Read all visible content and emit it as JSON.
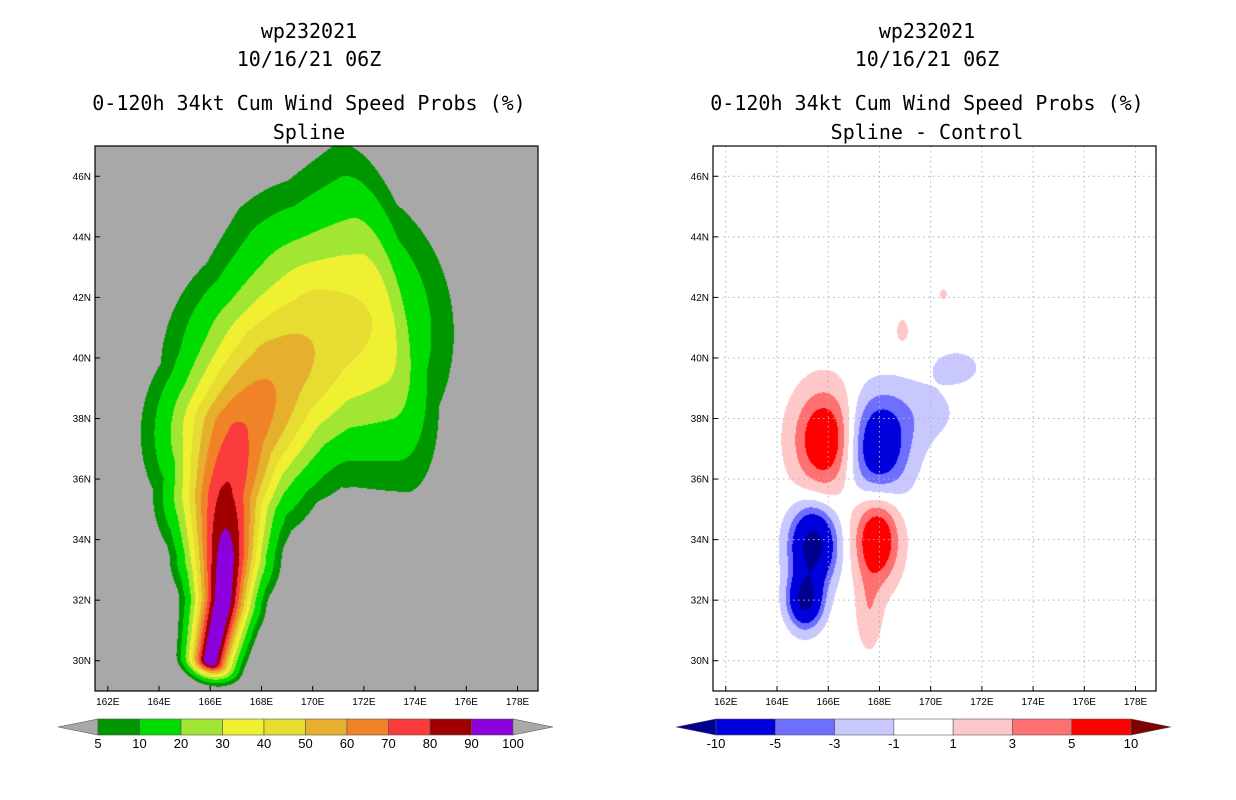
{
  "chart_data": [
    {
      "type": "heatmap",
      "title_lines": [
        "wp232021",
        "10/16/21 06Z",
        "0-120h 34kt Cum Wind Speed Probs (%)",
        "Spline"
      ],
      "background": "#a8a8a8",
      "x_ticks": [
        "162E",
        "164E",
        "166E",
        "168E",
        "170E",
        "172E",
        "174E",
        "176E",
        "178E"
      ],
      "y_ticks": [
        "30N",
        "32N",
        "34N",
        "36N",
        "38N",
        "40N",
        "42N",
        "44N",
        "46N"
      ],
      "xlim": [
        161.5,
        178.8
      ],
      "ylim": [
        29,
        47
      ],
      "colorbar": {
        "labels": [
          "5",
          "10",
          "20",
          "30",
          "40",
          "50",
          "60",
          "70",
          "80",
          "90",
          "100"
        ],
        "colors": [
          "#009600",
          "#00dc00",
          "#a0e632",
          "#f0f032",
          "#e6dc32",
          "#e6af2d",
          "#f08228",
          "#fa3c3c",
          "#a00000",
          "#8c00dc"
        ],
        "extend_colors": [
          "#a8a8a8",
          "#a8a8a8"
        ]
      },
      "levels": [
        5,
        10,
        20,
        30,
        40,
        50,
        60,
        70,
        80,
        90
      ],
      "level_colors": [
        "#009600",
        "#00dc00",
        "#a0e632",
        "#f0f032",
        "#e6dc32",
        "#e6af2d",
        "#f08228",
        "#fa3c3c",
        "#a00000",
        "#8c00dc"
      ],
      "track": [
        [
          166.0,
          30.0
        ],
        [
          166.5,
          32.0
        ],
        [
          166.6,
          33.5
        ],
        [
          166.6,
          35.5
        ],
        [
          167.1,
          37.5
        ],
        [
          168.6,
          39.5
        ],
        [
          170.3,
          40.8
        ],
        [
          172.3,
          41.3
        ]
      ],
      "spreads": [
        0.55,
        0.7,
        0.9,
        1.2,
        1.65,
        2.05,
        2.45,
        2.9
      ],
      "peaks": [
        100,
        100,
        96,
        82,
        72,
        58,
        48,
        40
      ]
    },
    {
      "type": "heatmap",
      "title_lines": [
        "wp232021",
        "10/16/21 06Z",
        "0-120h 34kt Cum Wind Speed Probs (%)",
        "Spline - Control"
      ],
      "background": "#ffffff",
      "x_ticks": [
        "162E",
        "164E",
        "166E",
        "168E",
        "170E",
        "172E",
        "174E",
        "176E",
        "178E"
      ],
      "y_ticks": [
        "30N",
        "32N",
        "34N",
        "36N",
        "38N",
        "40N",
        "42N",
        "44N",
        "46N"
      ],
      "xlim": [
        161.5,
        178.8
      ],
      "ylim": [
        29,
        47
      ],
      "colorbar": {
        "labels": [
          "-10",
          "-5",
          "-3",
          "-1",
          "1",
          "3",
          "5",
          "10"
        ],
        "colors": [
          "#0000dc",
          "#6e6eff",
          "#c8c8ff",
          "#ffffff",
          "#ffc8c8",
          "#ff7070",
          "#ff0000"
        ],
        "extend_colors": [
          "#000090",
          "#800000"
        ]
      },
      "features": [
        {
          "sign": "positive",
          "lon": 165.9,
          "lat": 37.3,
          "max": 8,
          "sx": 0.85,
          "sy": 1.15
        },
        {
          "sign": "negative",
          "lon": 167.9,
          "lat": 37.0,
          "max": -8,
          "sx": 0.85,
          "sy": 1.1
        },
        {
          "sign": "negative",
          "lon": 165.4,
          "lat": 33.8,
          "max": -12,
          "sx": 0.6,
          "sy": 0.85
        },
        {
          "sign": "positive",
          "lon": 167.9,
          "lat": 34.0,
          "max": 8,
          "sx": 0.6,
          "sy": 1.0
        },
        {
          "sign": "negative",
          "lon": 165.1,
          "lat": 32.0,
          "max": -11,
          "sx": 0.45,
          "sy": 0.6
        },
        {
          "sign": "negative",
          "lon": 169.2,
          "lat": 38.2,
          "max": -1.8,
          "sx": 1.4,
          "sy": 0.8
        },
        {
          "sign": "negative",
          "lon": 171.0,
          "lat": 39.7,
          "max": -2.2,
          "sx": 0.6,
          "sy": 0.35
        },
        {
          "sign": "positive",
          "lon": 167.6,
          "lat": 31.6,
          "max": 2.5,
          "sx": 0.35,
          "sy": 0.9
        },
        {
          "sign": "positive",
          "lon": 168.9,
          "lat": 40.9,
          "max": 2.0,
          "sx": 0.18,
          "sy": 0.3
        },
        {
          "sign": "positive",
          "lon": 170.5,
          "lat": 42.1,
          "max": 1.8,
          "sx": 0.12,
          "sy": 0.15
        }
      ]
    }
  ]
}
